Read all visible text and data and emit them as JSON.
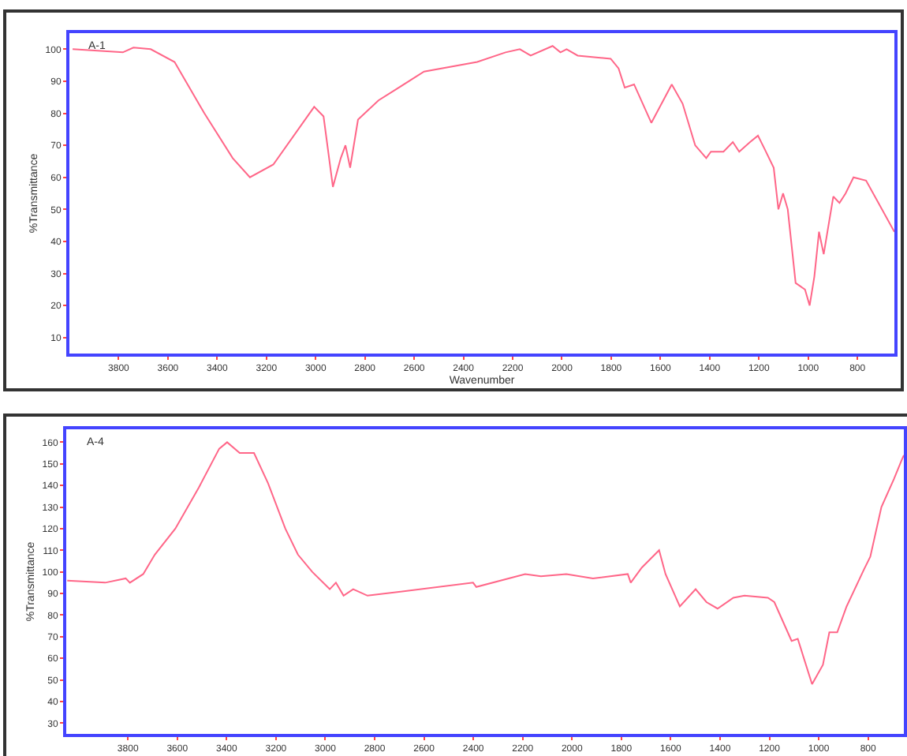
{
  "chart_data": [
    {
      "type": "line",
      "annotations": [
        "A-1"
      ],
      "xlabel": "Wavenumber",
      "ylabel": "%Transmittance",
      "xlim": [
        4000,
        650
      ],
      "xticks": [
        3800,
        3600,
        3400,
        3200,
        3000,
        2800,
        2600,
        2400,
        2200,
        2000,
        1800,
        1600,
        1400,
        1200,
        1000,
        800
      ],
      "ylim": [
        5,
        105
      ],
      "yticks": [
        10,
        20,
        30,
        40,
        50,
        60,
        70,
        80,
        90,
        100
      ],
      "grid": false,
      "marker": "none",
      "line_style": "solid",
      "series": [
        {
          "color": "#ff6688",
          "x": [
            3987,
            3783,
            3740,
            3670,
            3573,
            3452,
            3337,
            3267,
            3172,
            3006,
            2968,
            2930,
            2898,
            2879,
            2860,
            2828,
            2745,
            2560,
            2344,
            2229,
            2171,
            2127,
            2038,
            2006,
            1981,
            1936,
            1802,
            1770,
            1745,
            1707,
            1637,
            1554,
            1510,
            1459,
            1414,
            1395,
            1344,
            1306,
            1280,
            1236,
            1204,
            1178,
            1140,
            1121,
            1102,
            1083,
            1051,
            1013,
            994,
            975,
            956,
            937,
            898,
            873,
            848,
            816,
            765,
            650
          ],
          "values": [
            100,
            99,
            100.5,
            100,
            96,
            80,
            66,
            60,
            64,
            82,
            79,
            57,
            66,
            70,
            63,
            78,
            84,
            93,
            96,
            99,
            100,
            98,
            101,
            99,
            100,
            98,
            97,
            94,
            88,
            89,
            77,
            89,
            83,
            70,
            66,
            68,
            68,
            71,
            68,
            71,
            73,
            69,
            63,
            50,
            55,
            50,
            27,
            25,
            20,
            29,
            43,
            36,
            54,
            52,
            55,
            60,
            59,
            43
          ]
        }
      ]
    },
    {
      "type": "line",
      "annotations": [
        "A-4"
      ],
      "ylabel": "%Transmittance",
      "xlim": [
        4050,
        655
      ],
      "xticks": [
        3800,
        3600,
        3400,
        3200,
        3000,
        2800,
        2600,
        2400,
        2200,
        2000,
        1800,
        1600,
        1400,
        1200,
        1000,
        800
      ],
      "ylim": [
        25,
        166
      ],
      "yticks": [
        30,
        40,
        50,
        60,
        70,
        80,
        90,
        100,
        110,
        120,
        130,
        140,
        150,
        160
      ],
      "grid": false,
      "marker": "none",
      "line_style": "solid",
      "series": [
        {
          "color": "#ff6688",
          "x": [
            4046,
            3892,
            3809,
            3792,
            3738,
            3691,
            3608,
            3513,
            3430,
            3398,
            3347,
            3289,
            3232,
            3162,
            3111,
            3053,
            2982,
            2957,
            2926,
            2887,
            2829,
            2401,
            2388,
            2190,
            2126,
            2023,
            1915,
            1774,
            1762,
            1717,
            1647,
            1621,
            1563,
            1499,
            1455,
            1410,
            1346,
            1301,
            1206,
            1180,
            1110,
            1085,
            1027,
            983,
            957,
            925,
            887,
            817,
            791,
            746,
            695,
            663,
            655
          ],
          "values": [
            96,
            95,
            97,
            95,
            99,
            108,
            120,
            139,
            157,
            160,
            155,
            155,
            141,
            120,
            108,
            100,
            92,
            95,
            89,
            92,
            89,
            95,
            93,
            99,
            98,
            99,
            97,
            99,
            95,
            102,
            110,
            99,
            84,
            92,
            86,
            83,
            88,
            89,
            88,
            86,
            68,
            69,
            48,
            57,
            72,
            72,
            84,
            101,
            107,
            130,
            143,
            152,
            154
          ]
        }
      ]
    }
  ]
}
